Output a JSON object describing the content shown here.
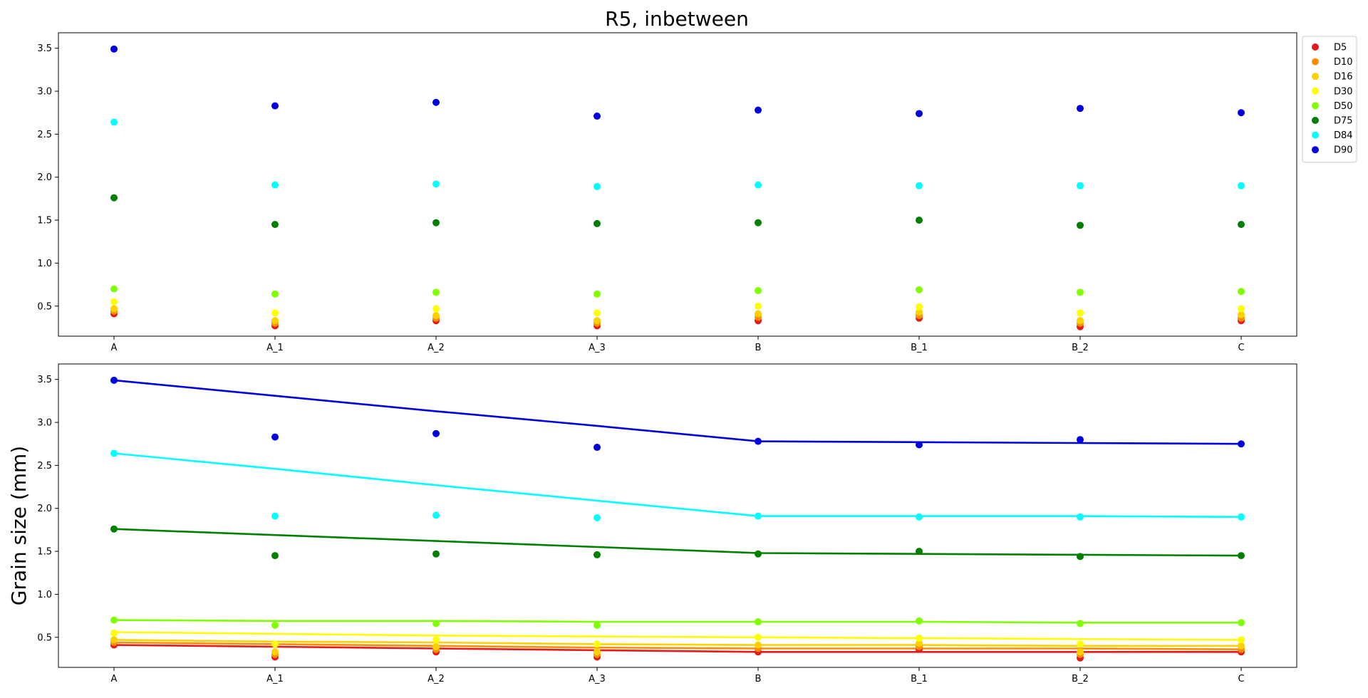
{
  "chart_data": [
    {
      "type": "scatter",
      "title": "R5, inbetween",
      "xlabel": "",
      "ylabel": "",
      "categories": [
        "A",
        "A_1",
        "A_2",
        "A_3",
        "B",
        "B_1",
        "B_2",
        "C"
      ],
      "ylim": [
        0.15,
        3.68
      ],
      "yticks": [
        0.5,
        1.0,
        1.5,
        2.0,
        2.5,
        3.0,
        3.5
      ],
      "ytick_labels": [
        "0.5",
        "1.0",
        "1.5",
        "2.0",
        "2.5",
        "3.0",
        "3.5"
      ],
      "grid": false,
      "legend": "outside-top-right",
      "series": [
        {
          "name": "D5",
          "color": "#e41a1c",
          "values": [
            0.41,
            0.27,
            0.33,
            0.27,
            0.33,
            0.36,
            0.26,
            0.33
          ]
        },
        {
          "name": "D10",
          "color": "#ff8c00",
          "values": [
            0.44,
            0.3,
            0.36,
            0.3,
            0.37,
            0.39,
            0.3,
            0.36
          ]
        },
        {
          "name": "D16",
          "color": "#ffd000",
          "values": [
            0.47,
            0.33,
            0.39,
            0.33,
            0.41,
            0.43,
            0.33,
            0.4
          ]
        },
        {
          "name": "D30",
          "color": "#ffff00",
          "values": [
            0.55,
            0.42,
            0.47,
            0.42,
            0.5,
            0.49,
            0.42,
            0.47
          ]
        },
        {
          "name": "D50",
          "color": "#7fff00",
          "values": [
            0.7,
            0.64,
            0.66,
            0.64,
            0.68,
            0.69,
            0.66,
            0.67
          ]
        },
        {
          "name": "D75",
          "color": "#007f00",
          "values": [
            1.76,
            1.45,
            1.47,
            1.46,
            1.47,
            1.5,
            1.44,
            1.45
          ]
        },
        {
          "name": "D84",
          "color": "#00ffff",
          "values": [
            2.64,
            1.91,
            1.92,
            1.89,
            1.91,
            1.9,
            1.9,
            1.9
          ]
        },
        {
          "name": "D90",
          "color": "#0000e0",
          "values": [
            3.49,
            2.83,
            2.87,
            2.71,
            2.78,
            2.74,
            2.8,
            2.75
          ]
        }
      ]
    },
    {
      "type": "line",
      "title": "",
      "xlabel": "",
      "ylabel": "Grain size (mm)",
      "categories": [
        "A",
        "A_1",
        "A_2",
        "A_3",
        "B",
        "B_1",
        "B_2",
        "C"
      ],
      "ylim": [
        0.15,
        3.68
      ],
      "yticks": [
        0.5,
        1.0,
        1.5,
        2.0,
        2.5,
        3.0,
        3.5
      ],
      "ytick_labels": [
        "0.5",
        "1.0",
        "1.5",
        "2.0",
        "2.5",
        "3.0",
        "3.5"
      ],
      "grid": false,
      "series": [
        {
          "name": "D5",
          "color": "#e41a1c",
          "values": [
            0.41,
            0.27,
            0.33,
            0.27,
            0.33,
            0.36,
            0.26,
            0.33
          ],
          "fit": [
            0.41,
            0.39,
            0.37,
            0.35,
            0.33,
            0.33,
            0.33,
            0.33
          ]
        },
        {
          "name": "D10",
          "color": "#ff8c00",
          "values": [
            0.44,
            0.3,
            0.36,
            0.3,
            0.37,
            0.39,
            0.3,
            0.36
          ],
          "fit": [
            0.44,
            0.42,
            0.4,
            0.38,
            0.37,
            0.37,
            0.37,
            0.36
          ]
        },
        {
          "name": "D16",
          "color": "#ffd000",
          "values": [
            0.47,
            0.33,
            0.39,
            0.33,
            0.41,
            0.43,
            0.33,
            0.4
          ],
          "fit": [
            0.47,
            0.45,
            0.44,
            0.42,
            0.41,
            0.41,
            0.4,
            0.4
          ]
        },
        {
          "name": "D30",
          "color": "#ffff00",
          "values": [
            0.55,
            0.42,
            0.47,
            0.42,
            0.5,
            0.49,
            0.42,
            0.47
          ],
          "fit": [
            0.56,
            0.54,
            0.52,
            0.51,
            0.5,
            0.49,
            0.48,
            0.47
          ]
        },
        {
          "name": "D50",
          "color": "#7fff00",
          "values": [
            0.7,
            0.64,
            0.66,
            0.64,
            0.68,
            0.69,
            0.66,
            0.67
          ],
          "fit": [
            0.7,
            0.69,
            0.69,
            0.68,
            0.68,
            0.68,
            0.67,
            0.67
          ]
        },
        {
          "name": "D75",
          "color": "#007f00",
          "values": [
            1.76,
            1.45,
            1.47,
            1.46,
            1.47,
            1.5,
            1.44,
            1.45
          ],
          "fit": [
            1.76,
            1.69,
            1.62,
            1.55,
            1.48,
            1.47,
            1.46,
            1.45
          ]
        },
        {
          "name": "D84",
          "color": "#00ffff",
          "values": [
            2.64,
            1.91,
            1.92,
            1.89,
            1.91,
            1.9,
            1.9,
            1.9
          ],
          "fit": [
            2.64,
            2.46,
            2.27,
            2.09,
            1.91,
            1.91,
            1.91,
            1.9
          ]
        },
        {
          "name": "D90",
          "color": "#0000e0",
          "values": [
            3.49,
            2.83,
            2.87,
            2.71,
            2.78,
            2.74,
            2.8,
            2.75
          ],
          "fit": [
            3.49,
            3.31,
            3.13,
            2.96,
            2.78,
            2.77,
            2.76,
            2.75
          ]
        }
      ]
    }
  ]
}
